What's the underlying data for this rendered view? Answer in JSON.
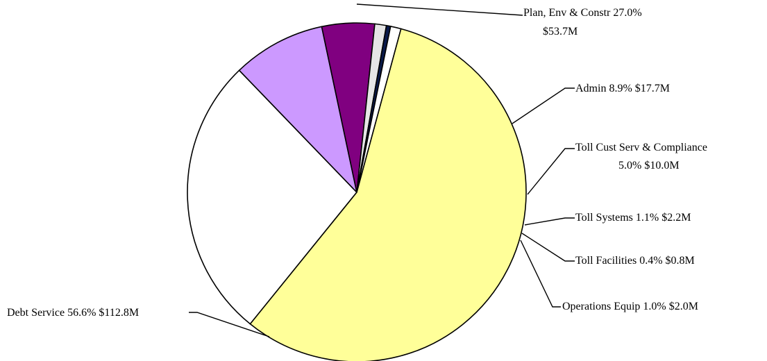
{
  "chart_data": {
    "type": "pie",
    "title": "",
    "slices": [
      {
        "name": "Plan, Env & Constr",
        "percent_label": "27.0%",
        "amount_label": "$53.7M",
        "value": 53.7,
        "color": "#ffffff"
      },
      {
        "name": "Admin",
        "percent_label": "8.9%",
        "amount_label": "$17.7M",
        "value": 17.7,
        "color": "#cc99ff"
      },
      {
        "name": "Toll Cust Serv & Compliance",
        "percent_label": "5.0%",
        "amount_label": "$10.0M",
        "value": 10.0,
        "color": "#800080"
      },
      {
        "name": "Toll Systems",
        "percent_label": "1.1%",
        "amount_label": "$2.2M",
        "value": 2.2,
        "color": "#e6e6e6"
      },
      {
        "name": "Toll Facilities",
        "percent_label": "0.4%",
        "amount_label": "$0.8M",
        "value": 0.8,
        "color": "#0a1a4a"
      },
      {
        "name": "Operations Equip",
        "percent_label": "1.0%",
        "amount_label": "$2.0M",
        "value": 2.0,
        "color": "#ffffff"
      },
      {
        "name": "Debt Service",
        "percent_label": "56.6%",
        "amount_label": "$112.8M",
        "value": 112.8,
        "color": "#ffff99"
      }
    ],
    "labels": {
      "plan_line1": "Plan, Env & Constr 27.0%",
      "plan_line2": "$53.7M",
      "admin": "Admin 8.9% $17.7M",
      "tollcust_line1": "Toll Cust Serv & Compliance",
      "tollcust_line2": "5.0% $10.0M",
      "tollsys": "Toll Systems 1.1% $2.2M",
      "tollfac": "Toll Facilities 0.4% $0.8M",
      "opsequip": "Operations Equip 1.0% $2.0M",
      "debt": "Debt Service 56.6% $112.8M"
    }
  }
}
